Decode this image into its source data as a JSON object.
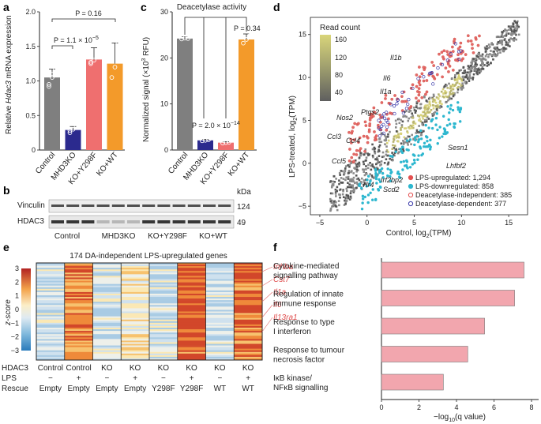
{
  "panels": {
    "a": "a",
    "b": "b",
    "c": "c",
    "d": "d",
    "e": "e",
    "f": "f"
  },
  "a": {
    "ylabel_pre": "Relative ",
    "ylabel_gene": "Hdac3",
    "ylabel_post": " mRNA expression",
    "yticks": [
      "0",
      "0.5",
      "1.0",
      "1.5",
      "2.0"
    ],
    "p_top": "P = 0.16",
    "p_mid": "P = 1.1 × 10",
    "p_mid_exp": "−5",
    "categories": [
      "Control",
      "MHD3KO",
      "KO+Y298F",
      "KO+WT"
    ],
    "colors": [
      "#7f7f7f",
      "#2b2a8e",
      "#ef6f6f",
      "#f39a2a"
    ]
  },
  "b": {
    "kda": "kDa",
    "rows": [
      {
        "label": "Vinculin",
        "kda": "124"
      },
      {
        "label": "HDAC3",
        "kda": "49"
      }
    ],
    "groups": [
      "Control",
      "MHD3KO",
      "KO+Y298F",
      "KO+WT"
    ]
  },
  "c": {
    "title": "Deacetylase activity",
    "ylabel": "Normalized signal (×10",
    "ylabel_exp": "3",
    "ylabel_end": " RFU)",
    "yticks": [
      "0",
      "10",
      "20",
      "30"
    ],
    "p_top": "P = 0.34",
    "p_mid": "P = 2.0 × 10",
    "p_mid_exp": "−14",
    "categories": [
      "Control",
      "MHD3KO",
      "KO+Y298F",
      "KO+WT"
    ]
  },
  "d": {
    "legend_title": "Read count",
    "cbar_ticks": [
      "160",
      "120",
      "80",
      "40"
    ],
    "xlabel": "Control, log",
    "xlabel_sub": "2",
    "xlabel_end": "(TPM)",
    "ylabel": "LPS-treated, log",
    "ylabel_sub": "2",
    "ylabel_end": "(TPM)",
    "xticks": [
      "−5",
      "0",
      "5",
      "10",
      "15"
    ],
    "yticks": [
      "15",
      "10",
      "5",
      "0",
      "−5"
    ],
    "genes_up": [
      "Il1b",
      "Il6",
      "Il1a",
      "Ptgs2",
      "Nos2",
      "Ccl3",
      "Ccl4",
      "Ccl5",
      "Tlr4"
    ],
    "genes_down": [
      "Sesn1",
      "Lhfbf2",
      "Irf2bp2",
      "Scd2"
    ],
    "legend": [
      {
        "label": "LPS-upregulated: 1,294",
        "color": "#e45050"
      },
      {
        "label": "LPS-downregulated: 858",
        "color": "#2db7cf"
      },
      {
        "label": "Deacetylase-independent: 385",
        "color": "#e45050"
      },
      {
        "label": "Deacetylase-dependent: 377",
        "color": "#3a3aaa"
      }
    ]
  },
  "e": {
    "title": "174 DA-independent LPS-upregulated genes",
    "ylabel": "z-score",
    "zticks": [
      "3",
      "2",
      "1",
      "0",
      "−1",
      "−2",
      "−3"
    ],
    "genes": [
      "Inhba",
      "Cst7",
      "Il1a",
      "Il6",
      "Il13ra1"
    ],
    "rows": [
      {
        "label": "HDAC3",
        "values": [
          "Control",
          "Control",
          "KO",
          "KO",
          "KO",
          "KO",
          "KO",
          "KO"
        ]
      },
      {
        "label": "LPS",
        "values": [
          "−",
          "+",
          "−",
          "+",
          "−",
          "+",
          "−",
          "+"
        ]
      },
      {
        "label": "Rescue",
        "values": [
          "Empty",
          "Empty",
          "Empty",
          "Empty",
          "Y298F",
          "Y298F",
          "WT",
          "WT"
        ]
      }
    ]
  },
  "f": {
    "terms": [
      {
        "l1": "Cytokine-mediated",
        "l2": "signalling pathway",
        "value": 7.6
      },
      {
        "l1": "Regulation of innate",
        "l2": "immune response",
        "value": 7.1
      },
      {
        "l1": "Response to type",
        "l2": "I interferon",
        "value": 5.5
      },
      {
        "l1": "Response to tumour",
        "l2": "necrosis factor",
        "value": 4.6
      },
      {
        "l1": "IκB kinase/",
        "l2": "NFκB signalling",
        "value": 3.3
      }
    ],
    "xticks": [
      "0",
      "2",
      "4",
      "6",
      "8"
    ],
    "xlabel": "−log",
    "xlabel_sub": "10",
    "xlabel_end": "(q value)",
    "bar_color": "#f2a6ae"
  },
  "chart_data": [
    {
      "type": "bar",
      "panel": "a",
      "categories": [
        "Control",
        "MHD3KO",
        "KO+Y298F",
        "KO+WT"
      ],
      "values": [
        1.05,
        0.29,
        1.31,
        1.25
      ],
      "ylim": [
        0,
        2.0
      ]
    },
    {
      "type": "bar",
      "panel": "c",
      "categories": [
        "Control",
        "MHD3KO",
        "KO+Y298F",
        "KO+WT"
      ],
      "values": [
        24.2,
        2.1,
        1.6,
        24.0
      ],
      "ylim": [
        0,
        30
      ]
    },
    {
      "type": "bar",
      "panel": "f",
      "categories": [
        "Cytokine-mediated signalling pathway",
        "Regulation of innate immune response",
        "Response to type I interferon",
        "Response to tumour necrosis factor",
        "IκB kinase/NFκB signalling"
      ],
      "values": [
        7.6,
        7.1,
        5.5,
        4.6,
        3.3
      ],
      "xlim": [
        0,
        8
      ]
    }
  ]
}
